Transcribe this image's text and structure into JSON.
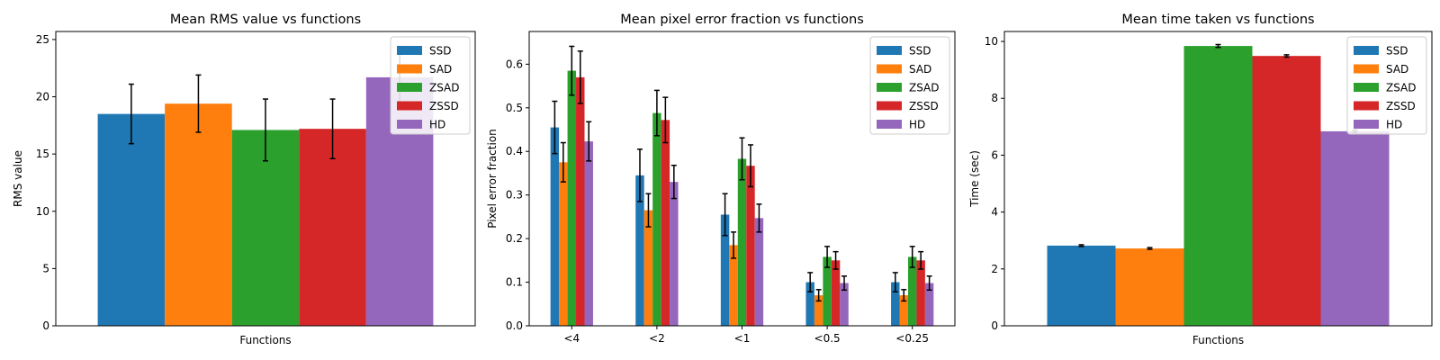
{
  "chart_data": [
    {
      "type": "bar",
      "title": "Mean RMS value vs functions",
      "xlabel": "Functions",
      "ylabel": "RMS value",
      "categories": [
        ""
      ],
      "ylim": [
        0,
        25.7
      ],
      "yticks": [
        0,
        5,
        10,
        15,
        20,
        25
      ],
      "grid": false,
      "legend_position": "top-right",
      "series": [
        {
          "name": "SSD",
          "color": "#1f77b4",
          "values": [
            18.5
          ],
          "errors": [
            2.6
          ]
        },
        {
          "name": "SAD",
          "color": "#ff7f0e",
          "values": [
            19.4
          ],
          "errors": [
            2.5
          ]
        },
        {
          "name": "ZSAD",
          "color": "#2ca02c",
          "values": [
            17.1
          ],
          "errors": [
            2.7
          ]
        },
        {
          "name": "ZSSD",
          "color": "#d62728",
          "values": [
            17.2
          ],
          "errors": [
            2.6
          ]
        },
        {
          "name": "HD",
          "color": "#9467bd",
          "values": [
            21.7
          ],
          "errors": [
            2.7
          ]
        }
      ]
    },
    {
      "type": "bar",
      "title": "Mean pixel error fraction vs functions",
      "xlabel": "",
      "ylabel": "Pixel error fraction",
      "categories": [
        "<4",
        "<2",
        "<1",
        "<0.5",
        "<0.25"
      ],
      "ylim": [
        0,
        0.675
      ],
      "yticks": [
        0.0,
        0.1,
        0.2,
        0.3,
        0.4,
        0.5,
        0.6
      ],
      "grid": false,
      "legend_position": "top-right",
      "series": [
        {
          "name": "SSD",
          "color": "#1f77b4",
          "values": [
            0.455,
            0.345,
            0.255,
            0.1,
            0.1
          ],
          "errors": [
            0.06,
            0.06,
            0.048,
            0.022,
            0.022
          ]
        },
        {
          "name": "SAD",
          "color": "#ff7f0e",
          "values": [
            0.375,
            0.265,
            0.185,
            0.07,
            0.07
          ],
          "errors": [
            0.045,
            0.038,
            0.03,
            0.013,
            0.013
          ]
        },
        {
          "name": "ZSAD",
          "color": "#2ca02c",
          "values": [
            0.585,
            0.488,
            0.383,
            0.158,
            0.158
          ],
          "errors": [
            0.056,
            0.052,
            0.048,
            0.024,
            0.024
          ]
        },
        {
          "name": "ZSSD",
          "color": "#d62728",
          "values": [
            0.57,
            0.472,
            0.367,
            0.15,
            0.15
          ],
          "errors": [
            0.06,
            0.052,
            0.048,
            0.02,
            0.02
          ]
        },
        {
          "name": "HD",
          "color": "#9467bd",
          "values": [
            0.423,
            0.33,
            0.247,
            0.098,
            0.098
          ],
          "errors": [
            0.045,
            0.038,
            0.032,
            0.016,
            0.016
          ]
        }
      ]
    },
    {
      "type": "bar",
      "title": "Mean time taken vs functions",
      "xlabel": "Functions",
      "ylabel": "Time (sec)",
      "categories": [
        ""
      ],
      "ylim": [
        0,
        10.35
      ],
      "yticks": [
        0,
        2,
        4,
        6,
        8,
        10
      ],
      "grid": false,
      "legend_position": "top-right",
      "series": [
        {
          "name": "SSD",
          "color": "#1f77b4",
          "values": [
            2.82
          ],
          "errors": [
            0.03
          ]
        },
        {
          "name": "SAD",
          "color": "#ff7f0e",
          "values": [
            2.72
          ],
          "errors": [
            0.03
          ]
        },
        {
          "name": "ZSAD",
          "color": "#2ca02c",
          "values": [
            9.84
          ],
          "errors": [
            0.05
          ]
        },
        {
          "name": "ZSSD",
          "color": "#d62728",
          "values": [
            9.49
          ],
          "errors": [
            0.04
          ]
        },
        {
          "name": "HD",
          "color": "#9467bd",
          "values": [
            6.84
          ],
          "errors": [
            0.04
          ]
        }
      ]
    }
  ]
}
